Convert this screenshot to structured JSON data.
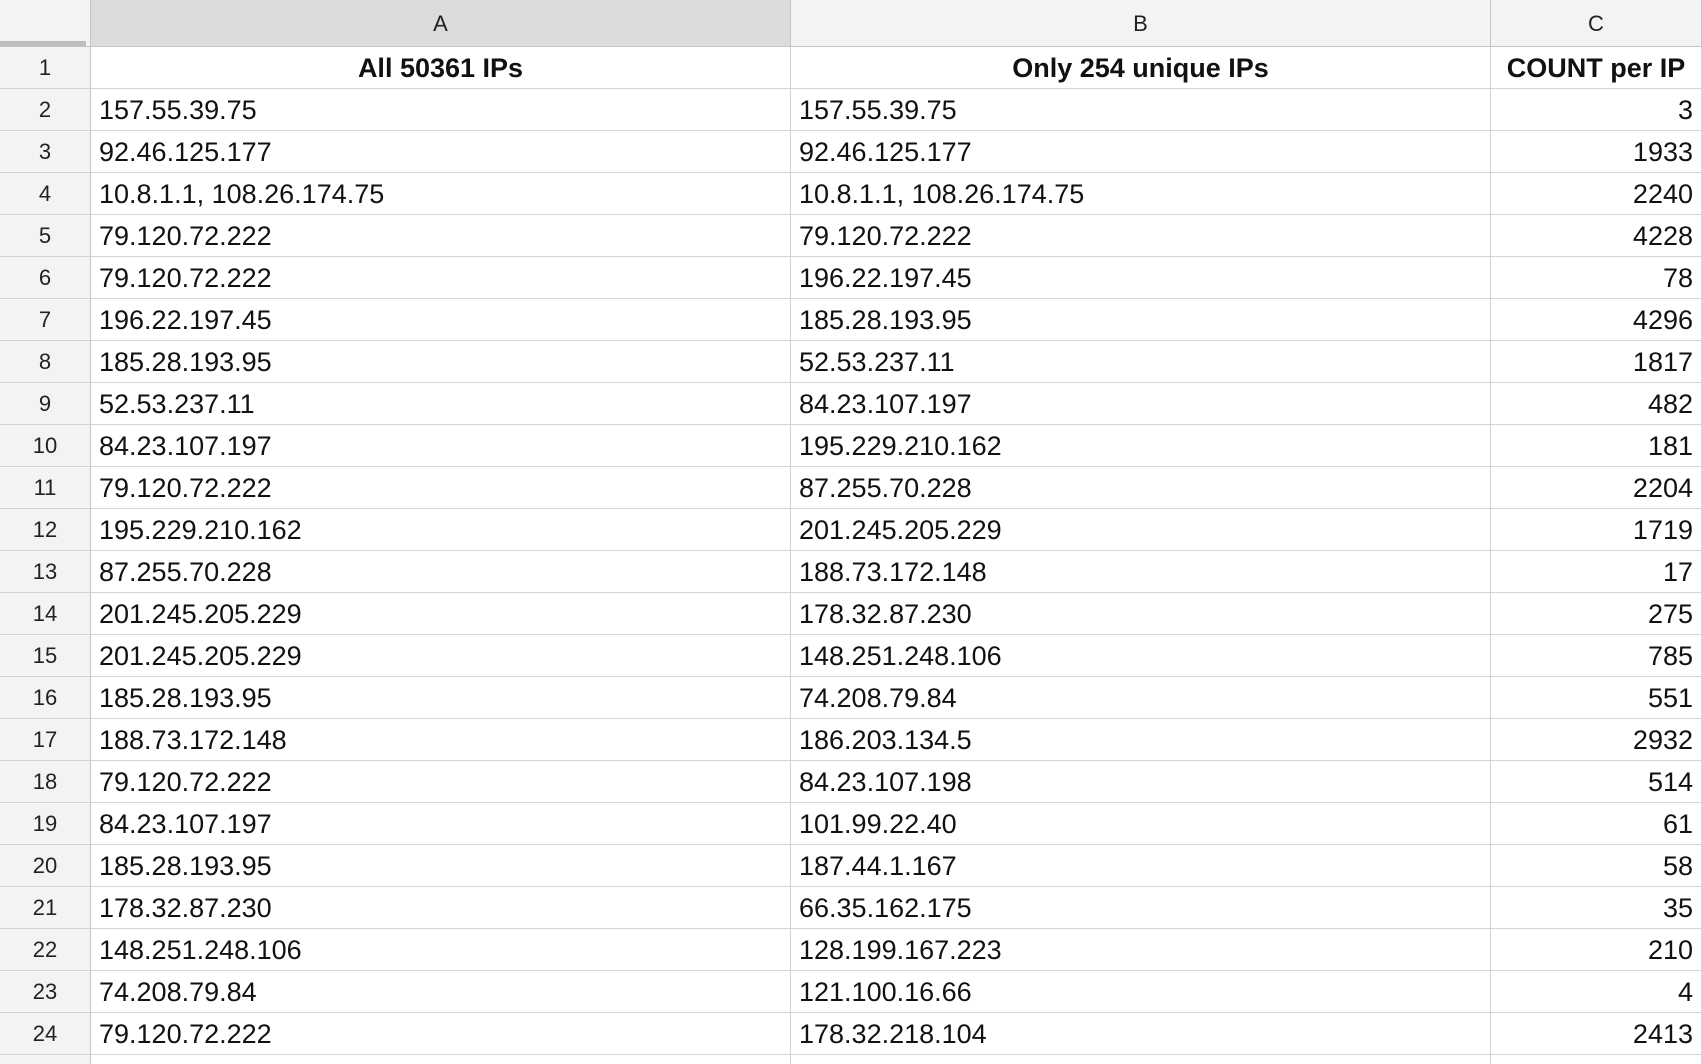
{
  "columns": [
    "A",
    "B",
    "C"
  ],
  "headers": [
    "All 50361 IPs",
    "Only 254 unique IPs",
    "COUNT per IP"
  ],
  "rows": [
    {
      "n": "2",
      "a": "157.55.39.75",
      "b": "157.55.39.75",
      "c": "3"
    },
    {
      "n": "3",
      "a": "92.46.125.177",
      "b": "92.46.125.177",
      "c": "1933"
    },
    {
      "n": "4",
      "a": "10.8.1.1, 108.26.174.75",
      "b": "10.8.1.1, 108.26.174.75",
      "c": "2240"
    },
    {
      "n": "5",
      "a": "79.120.72.222",
      "b": "79.120.72.222",
      "c": "4228"
    },
    {
      "n": "6",
      "a": "79.120.72.222",
      "b": "196.22.197.45",
      "c": "78"
    },
    {
      "n": "7",
      "a": "196.22.197.45",
      "b": "185.28.193.95",
      "c": "4296"
    },
    {
      "n": "8",
      "a": "185.28.193.95",
      "b": "52.53.237.11",
      "c": "1817"
    },
    {
      "n": "9",
      "a": "52.53.237.11",
      "b": "84.23.107.197",
      "c": "482"
    },
    {
      "n": "10",
      "a": "84.23.107.197",
      "b": "195.229.210.162",
      "c": "181"
    },
    {
      "n": "11",
      "a": "79.120.72.222",
      "b": "87.255.70.228",
      "c": "2204"
    },
    {
      "n": "12",
      "a": "195.229.210.162",
      "b": "201.245.205.229",
      "c": "1719"
    },
    {
      "n": "13",
      "a": "87.255.70.228",
      "b": "188.73.172.148",
      "c": "17"
    },
    {
      "n": "14",
      "a": "201.245.205.229",
      "b": "178.32.87.230",
      "c": "275"
    },
    {
      "n": "15",
      "a": "201.245.205.229",
      "b": "148.251.248.106",
      "c": "785"
    },
    {
      "n": "16",
      "a": "185.28.193.95",
      "b": "74.208.79.84",
      "c": "551"
    },
    {
      "n": "17",
      "a": "188.73.172.148",
      "b": "186.203.134.5",
      "c": "2932"
    },
    {
      "n": "18",
      "a": "79.120.72.222",
      "b": "84.23.107.198",
      "c": "514"
    },
    {
      "n": "19",
      "a": "84.23.107.197",
      "b": "101.99.22.40",
      "c": "61"
    },
    {
      "n": "20",
      "a": "185.28.193.95",
      "b": "187.44.1.167",
      "c": "58"
    },
    {
      "n": "21",
      "a": "178.32.87.230",
      "b": "66.35.162.175",
      "c": "35"
    },
    {
      "n": "22",
      "a": "148.251.248.106",
      "b": "128.199.167.223",
      "c": "210"
    },
    {
      "n": "23",
      "a": "74.208.79.84",
      "b": "121.100.16.66",
      "c": "4"
    },
    {
      "n": "24",
      "a": "79.120.72.222",
      "b": "178.32.218.104",
      "c": "2413"
    }
  ]
}
